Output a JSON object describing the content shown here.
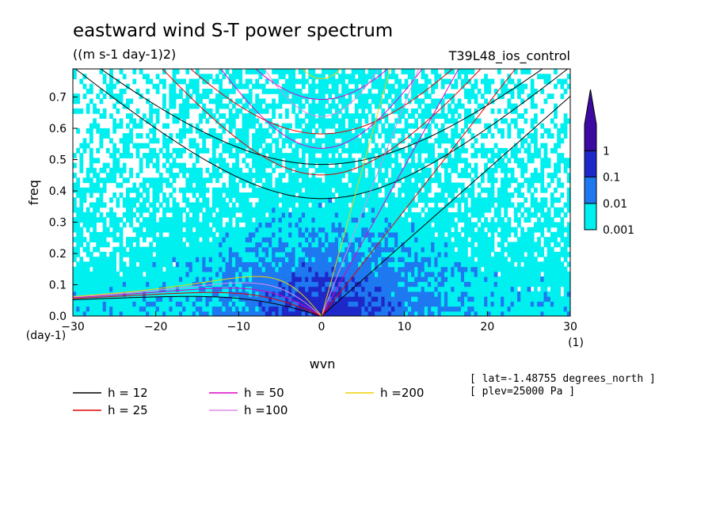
{
  "chart_data": {
    "type": "heatmap",
    "title": "eastward wind S-T power spectrum",
    "units": "((m s-1 day-1)2)",
    "run_label": "T39L48_ios_control",
    "xlabel": "wvn",
    "ylabel": "freq",
    "x_unit_label": "(1)",
    "y_unit_label": "(day-1)",
    "xlim": [
      -30,
      30
    ],
    "ylim": [
      0,
      0.79
    ],
    "xticks": [
      -30,
      -20,
      -10,
      0,
      10,
      20,
      30
    ],
    "yticks": [
      0.0,
      0.1,
      0.2,
      0.3,
      0.4,
      0.5,
      0.6,
      0.7
    ],
    "color_levels": [
      0.001,
      0.01,
      0.1,
      1
    ],
    "color_level_labels": [
      "0.001",
      "0.01",
      "0.1",
      "1"
    ],
    "colors": [
      "#00f0f0",
      "#1e78f0",
      "#1e28c8",
      "#3c0aa0"
    ],
    "colorbar_extend": "max",
    "legend_placement": "bottom-left",
    "curves": [
      {
        "name": "h = 12",
        "h": 12,
        "color": "#000000"
      },
      {
        "name": "h = 25",
        "h": 25,
        "color": "#e00000"
      },
      {
        "name": "h = 50",
        "h": 50,
        "color": "#e000c8"
      },
      {
        "name": "h =100",
        "h": 100,
        "color": "#dc8ce6"
      },
      {
        "name": "h =200",
        "h": 200,
        "color": "#f0d200"
      }
    ],
    "annotations": [
      "[ lat=-1.48755 degrees_north ]",
      "[ plev=25000 Pa ]"
    ]
  }
}
